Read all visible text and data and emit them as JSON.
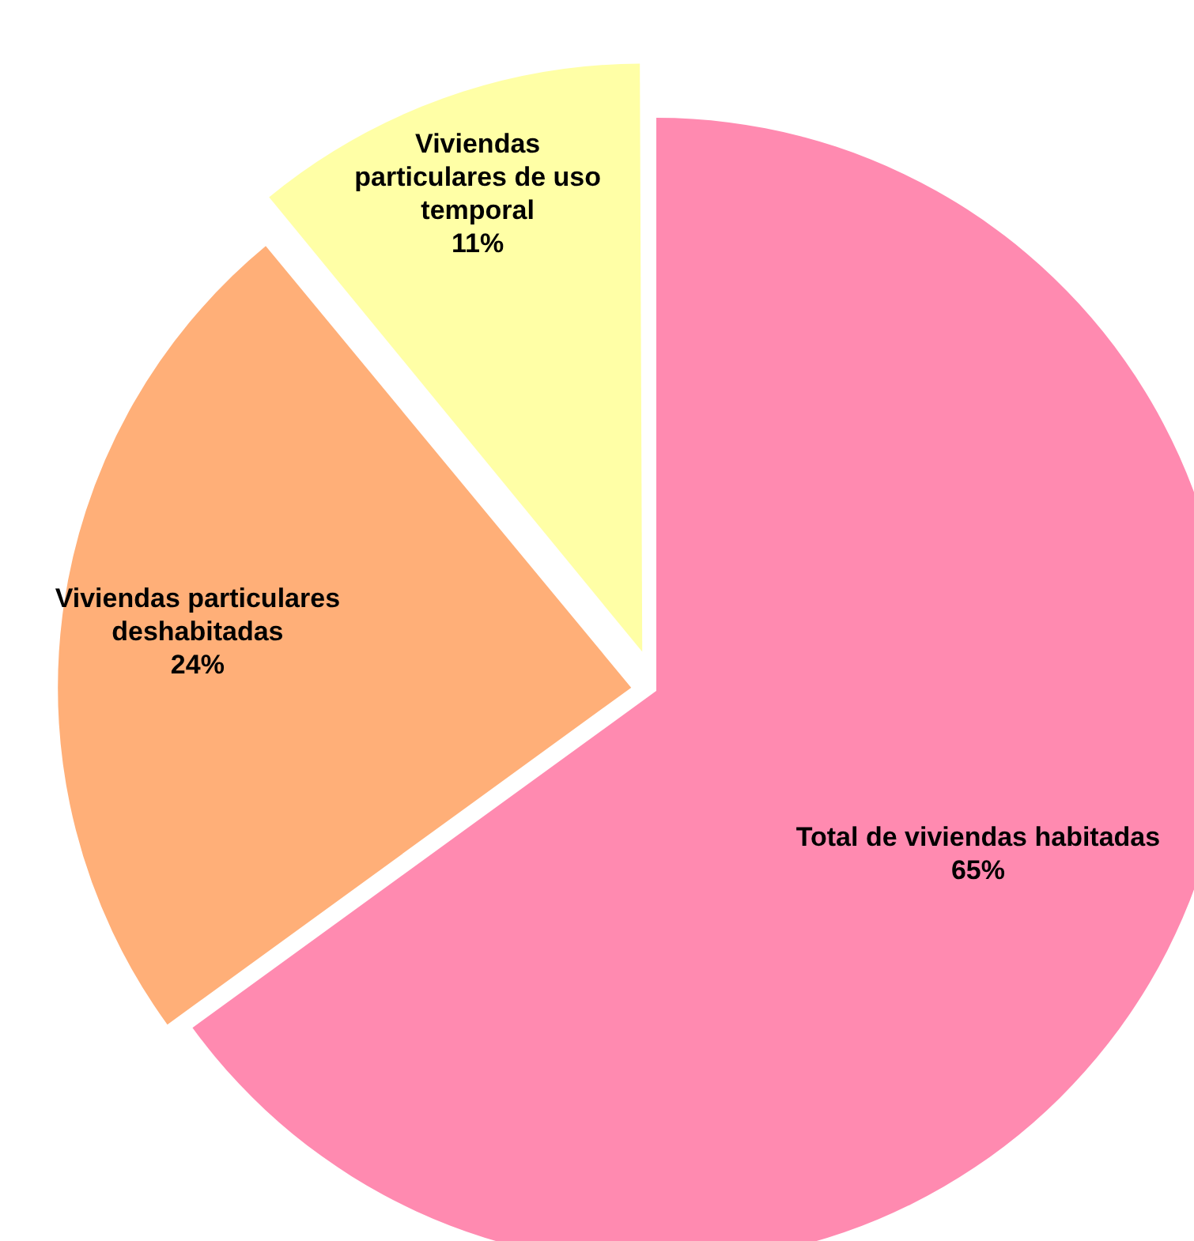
{
  "chart_data": {
    "type": "pie",
    "categories": [
      "Total de viviendas habitadas",
      "Viviendas particulares deshabitadas",
      "Viviendas particulares de uso temporal"
    ],
    "values": [
      65,
      24,
      11
    ],
    "value_labels": [
      "65%",
      "24%",
      "11%"
    ],
    "colors": [
      "#ff8ab0",
      "#ffaf78",
      "#ffffa6"
    ],
    "legend": false
  }
}
